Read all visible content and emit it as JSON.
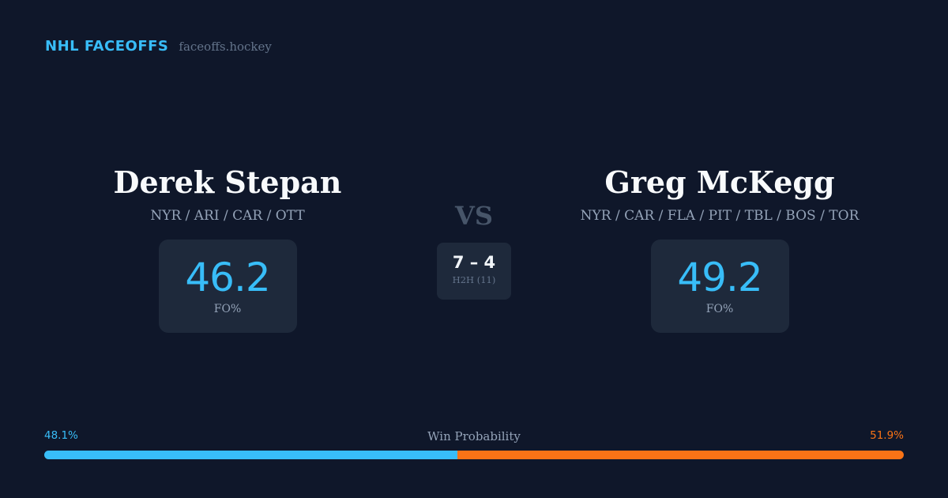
{
  "brand": {
    "name": "NHL FACEOFFS",
    "url": "faceoffs.hockey"
  },
  "players": {
    "left": {
      "name": "Derek Stepan",
      "teams": "NYR / ARI / CAR / OTT",
      "stat_value": "46.2",
      "stat_label": "FO%"
    },
    "right": {
      "name": "Greg McKegg",
      "teams": "NYR / CAR / FLA / PIT / TBL / BOS / TOR",
      "stat_value": "49.2",
      "stat_label": "FO%"
    }
  },
  "vs_label": "VS",
  "head_to_head": {
    "score": "7 – 4",
    "label": "H2H (11)"
  },
  "win_probability": {
    "title": "Win Probability",
    "left_label": "48.1%",
    "right_label": "51.9%",
    "left_value": 48.1,
    "right_value": 51.9,
    "left_color": "#38bdf8",
    "right_color": "#f97316"
  }
}
